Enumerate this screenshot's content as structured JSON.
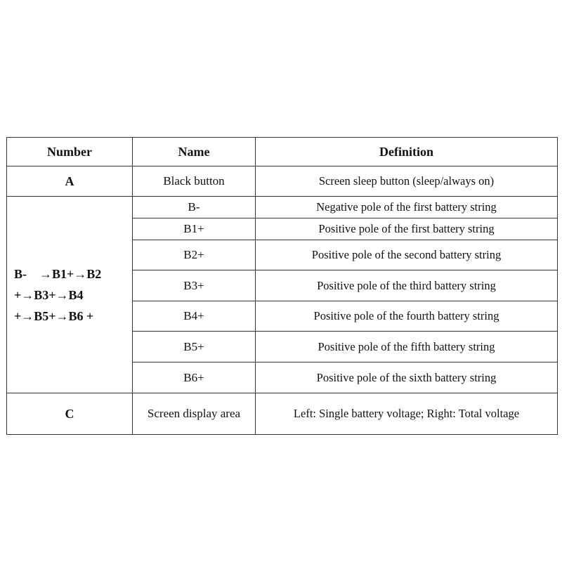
{
  "headers": {
    "number": "Number",
    "name": "Name",
    "definition": "Definition"
  },
  "rows": [
    {
      "number": "A",
      "name": "Black button",
      "definition": "Screen sleep button (sleep/always on)"
    },
    {
      "name": "B-",
      "definition": "Negative pole of the first battery string"
    },
    {
      "name": "B1+",
      "definition": "Positive pole of the first battery string"
    },
    {
      "name": "B2+",
      "definition": "Positive pole of the second battery string"
    },
    {
      "name": "B3+",
      "definition": "Positive pole of the third battery string"
    },
    {
      "name": "B4+",
      "definition": "Positive pole of the fourth battery string"
    },
    {
      "name": "B5+",
      "definition": "Positive pole of the fifth battery string"
    },
    {
      "name": "B6+",
      "definition": "Positive pole of the sixth battery string"
    },
    {
      "number": "C",
      "name": "Screen display area",
      "definition": "Left: Single battery voltage; Right: Total voltage"
    }
  ],
  "chain": {
    "line1": "B-    →B1+→B2",
    "line2": "+→B3+→B4",
    "line3": "+→B5+→B6 +"
  }
}
